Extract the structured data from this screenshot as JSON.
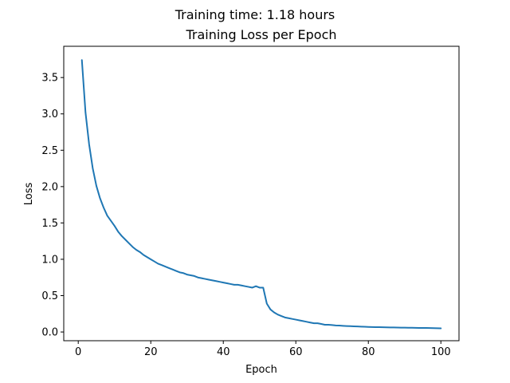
{
  "chart_data": {
    "type": "line",
    "suptitle": "Training time: 1.18 hours",
    "title": "Training Loss per Epoch",
    "xlabel": "Epoch",
    "ylabel": "Loss",
    "xlim": [
      -4,
      105
    ],
    "ylim": [
      -0.12,
      3.93
    ],
    "xticks": [
      0,
      20,
      40,
      60,
      80,
      100
    ],
    "xtick_labels": [
      "0",
      "20",
      "40",
      "60",
      "80",
      "100"
    ],
    "yticks": [
      0.0,
      0.5,
      1.0,
      1.5,
      2.0,
      2.5,
      3.0,
      3.5
    ],
    "ytick_labels": [
      "0.0",
      "0.5",
      "1.0",
      "1.5",
      "2.0",
      "2.5",
      "3.0",
      "3.5"
    ],
    "grid": false,
    "line_color": "#1f77b4",
    "series": [
      {
        "x": [
          1,
          2,
          3,
          4,
          5,
          6,
          7,
          8,
          9,
          10,
          11,
          12,
          13,
          14,
          15,
          16,
          17,
          18,
          19,
          20,
          21,
          22,
          23,
          24,
          25,
          26,
          27,
          28,
          29,
          30,
          31,
          32,
          33,
          34,
          35,
          36,
          37,
          38,
          39,
          40,
          41,
          42,
          43,
          44,
          45,
          46,
          47,
          48,
          49,
          50,
          51,
          52,
          53,
          54,
          55,
          56,
          57,
          58,
          59,
          60,
          61,
          62,
          63,
          64,
          65,
          66,
          67,
          68,
          69,
          70,
          71,
          72,
          73,
          74,
          75,
          76,
          77,
          78,
          79,
          80,
          81,
          82,
          83,
          84,
          85,
          86,
          87,
          88,
          89,
          90,
          91,
          92,
          93,
          94,
          95,
          96,
          97,
          98,
          99,
          100
        ],
        "values": [
          3.74,
          3.02,
          2.58,
          2.25,
          2.01,
          1.84,
          1.71,
          1.6,
          1.53,
          1.46,
          1.38,
          1.32,
          1.27,
          1.22,
          1.17,
          1.13,
          1.1,
          1.06,
          1.03,
          1.0,
          0.97,
          0.94,
          0.92,
          0.9,
          0.88,
          0.86,
          0.84,
          0.82,
          0.81,
          0.79,
          0.78,
          0.77,
          0.75,
          0.74,
          0.73,
          0.72,
          0.71,
          0.7,
          0.69,
          0.68,
          0.67,
          0.66,
          0.65,
          0.65,
          0.64,
          0.63,
          0.62,
          0.61,
          0.63,
          0.61,
          0.61,
          0.39,
          0.31,
          0.27,
          0.24,
          0.22,
          0.2,
          0.19,
          0.18,
          0.17,
          0.16,
          0.15,
          0.14,
          0.13,
          0.12,
          0.12,
          0.11,
          0.1,
          0.1,
          0.095,
          0.09,
          0.088,
          0.085,
          0.082,
          0.08,
          0.078,
          0.076,
          0.074,
          0.072,
          0.07,
          0.068,
          0.067,
          0.066,
          0.065,
          0.064,
          0.063,
          0.062,
          0.061,
          0.06,
          0.06,
          0.059,
          0.058,
          0.057,
          0.056,
          0.055,
          0.055,
          0.054,
          0.053,
          0.052,
          0.05
        ]
      }
    ]
  }
}
